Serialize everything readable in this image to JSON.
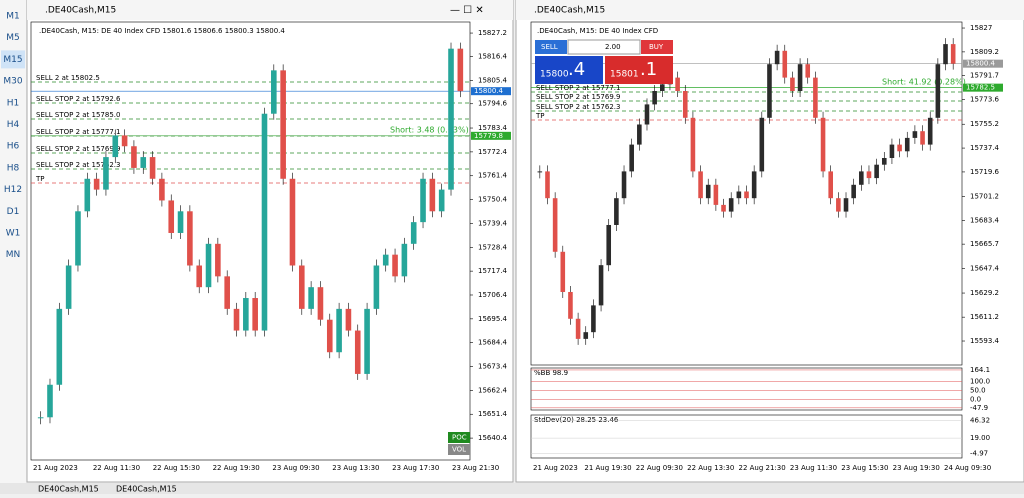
{
  "sidebar": {
    "timeframes": [
      "M1",
      "M5",
      "M15",
      "M30",
      "H1",
      "H4",
      "H6",
      "H8",
      "H12",
      "D1",
      "W1",
      "MN"
    ],
    "active": 2
  },
  "windows": [
    {
      "title": ".DE40Cash,M15",
      "header": ".DE40Cash, M15: DE 40 Index CFD  15801.6 15806.6 15800.3 15800.4",
      "ylim": [
        15630.3,
        15832.3
      ],
      "yticks": [
        15827.2,
        15816.4,
        15805.4,
        15794.6,
        15783.4,
        15772.4,
        15761.4,
        15750.4,
        15739.4,
        15728.4,
        15717.4,
        15706.4,
        15695.4,
        15684.4,
        15673.4,
        15662.4,
        15651.4,
        15640.4
      ],
      "price_marks": [
        {
          "value": 15800.4,
          "color": "#1e6fd0"
        },
        {
          "value": 15779.8,
          "color": "#2eaa2e"
        }
      ],
      "orders": [
        "SELL 2 at 15802.5",
        "SELL STOP 2 at 15792.6",
        "SELL STOP 2 at 15785.0",
        "SELL STOP 2 at 15777.1",
        "SELL STOP 2 at 15769.9",
        "SELL STOP 2 at 15762.3",
        "TP"
      ],
      "position_label": "Short: 3.48  (0.03%)",
      "times": [
        "21 Aug 2023",
        "22 Aug 11:30",
        "22 Aug 15:30",
        "22 Aug 19:30",
        "23 Aug 09:30",
        "23 Aug 13:30",
        "23 Aug 17:30",
        "23 Aug 21:30"
      ],
      "buttons": [
        "POC",
        "VOL"
      ],
      "closes": [
        15650,
        15665,
        15700,
        15720,
        15745,
        15760,
        15755,
        15770,
        15780,
        15775,
        15765,
        15770,
        15760,
        15750,
        15735,
        15745,
        15720,
        15710,
        15730,
        15715,
        15700,
        15690,
        15705,
        15690,
        15790,
        15810,
        15760,
        15720,
        15700,
        15710,
        15695,
        15680,
        15700,
        15690,
        15670,
        15700,
        15720,
        15725,
        15715,
        15730,
        15740,
        15760,
        15745,
        15755,
        15820,
        15800.4
      ]
    },
    {
      "title": ".DE40Cash,M15",
      "header": ".DE40Cash, M15:  DE 40 Index CFD",
      "ylim": [
        15575.5,
        15831.5
      ],
      "yticks": [
        15827.0,
        15809.2,
        15791.7,
        15773.6,
        15755.2,
        15737.4,
        15719.6,
        15701.2,
        15683.4,
        15665.7,
        15647.4,
        15629.2,
        15611.2,
        15593.4
      ],
      "price_marks": [
        {
          "value": 15800.4,
          "color": "#9a9a9a"
        },
        {
          "value": 15782.5,
          "color": "#2eaa2e"
        }
      ],
      "orders": [
        "SELL STOP 2 at 15777.1",
        "SELL STOP 2 at 15769.9",
        "SELL STOP 2 at 15762.3",
        "TP"
      ],
      "position_label": "Short: 41.92  (0.28%)",
      "trade_panel": {
        "sell": "SELL",
        "buy": "BUY",
        "volume": "2.00",
        "bid_main": "15800",
        "bid_small": ".4",
        "ask_main": "15801",
        "ask_small": ".1"
      },
      "times": [
        "21 Aug 2023",
        "21 Aug 19:30",
        "22 Aug 09:30",
        "22 Aug 13:30",
        "22 Aug 21:30",
        "23 Aug 11:30",
        "23 Aug 15:30",
        "23 Aug 19:30",
        "24 Aug 09:30"
      ],
      "closes": [
        15720,
        15700,
        15660,
        15630,
        15610,
        15595,
        15600,
        15620,
        15650,
        15680,
        15700,
        15720,
        15740,
        15755,
        15770,
        15780,
        15785,
        15790,
        15780,
        15760,
        15720,
        15700,
        15710,
        15695,
        15690,
        15700,
        15705,
        15700,
        15720,
        15760,
        15800,
        15810,
        15790,
        15780,
        15800,
        15790,
        15760,
        15720,
        15700,
        15690,
        15700,
        15710,
        15720,
        15715,
        15725,
        15730,
        15740,
        15735,
        15745,
        15750,
        15740,
        15760,
        15800,
        15815,
        15800.4
      ],
      "bb": {
        "label": "%BB 98.9",
        "ylim": [
          -60,
          175
        ],
        "yticks": [
          164.1,
          {
            "value": 100,
            "label": "100.0"
          },
          {
            "value": 50,
            "label": "50.0"
          },
          {
            "value": 0,
            "label": "0.0"
          },
          -47.9
        ]
      },
      "std": {
        "label": "StdDev(20) 28.25 23.46",
        "ylim": [
          -12,
          55
        ],
        "yticks": [
          46.32,
          {
            "value": 19,
            "label": "19.00"
          },
          -4.97
        ]
      }
    }
  ],
  "tabs": [
    "DE40Cash,M15",
    "DE40Cash,M15"
  ]
}
